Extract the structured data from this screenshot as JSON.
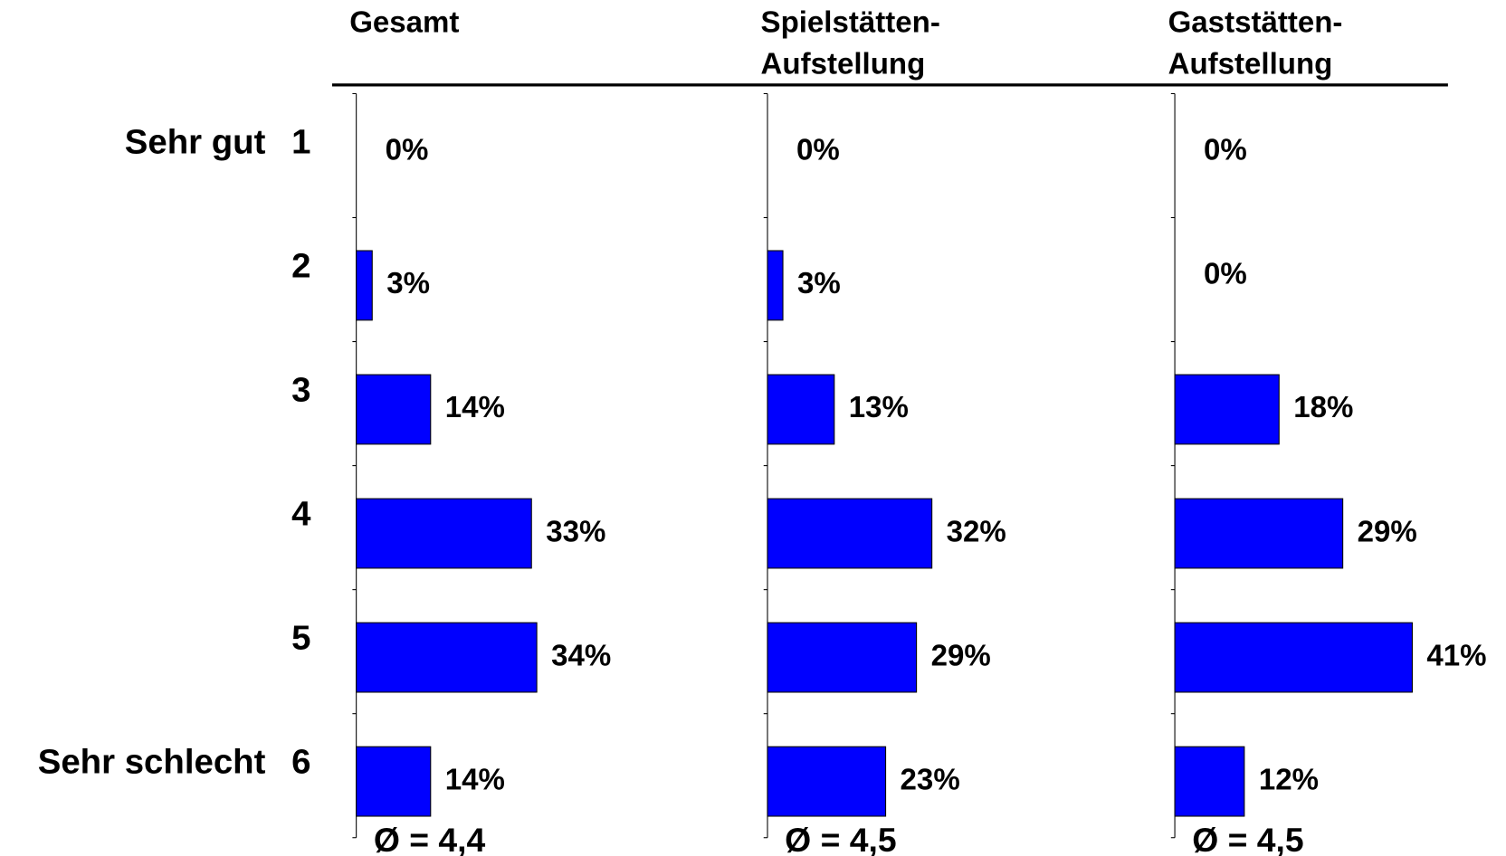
{
  "chart_data": [
    {
      "type": "bar",
      "orientation": "horizontal",
      "title": [
        "Gesamt"
      ],
      "categories": [
        "1",
        "2",
        "3",
        "4",
        "5",
        "6"
      ],
      "category_labels": [
        "Sehr gut",
        null,
        null,
        null,
        null,
        "Sehr schlecht"
      ],
      "values": [
        0,
        3,
        14,
        33,
        34,
        14
      ],
      "value_labels": [
        "0%",
        "3%",
        "14%",
        "33%",
        "34%",
        "14%"
      ],
      "color": "#0000ff",
      "xlim": [
        0,
        60
      ],
      "annotation": "Ø = 4,4"
    },
    {
      "type": "bar",
      "orientation": "horizontal",
      "title": [
        "Spielstätten-",
        "Aufstellung"
      ],
      "values": [
        0,
        3,
        13,
        32,
        29,
        23
      ],
      "value_labels": [
        "0%",
        "3%",
        "13%",
        "32%",
        "29%",
        "23%"
      ],
      "color": "#0000ff",
      "xlim": [
        0,
        62
      ],
      "annotation": "Ø = 4,5"
    },
    {
      "type": "bar",
      "orientation": "horizontal",
      "title": [
        "Gaststätten-",
        "Aufstellung"
      ],
      "values": [
        0,
        0,
        18,
        29,
        41,
        12
      ],
      "value_labels": [
        "0%",
        "0%",
        "18%",
        "29%",
        "41%",
        "12%"
      ],
      "color": "#0000ff",
      "xlim": [
        0,
        55
      ],
      "annotation": "Ø = 4,5"
    }
  ]
}
